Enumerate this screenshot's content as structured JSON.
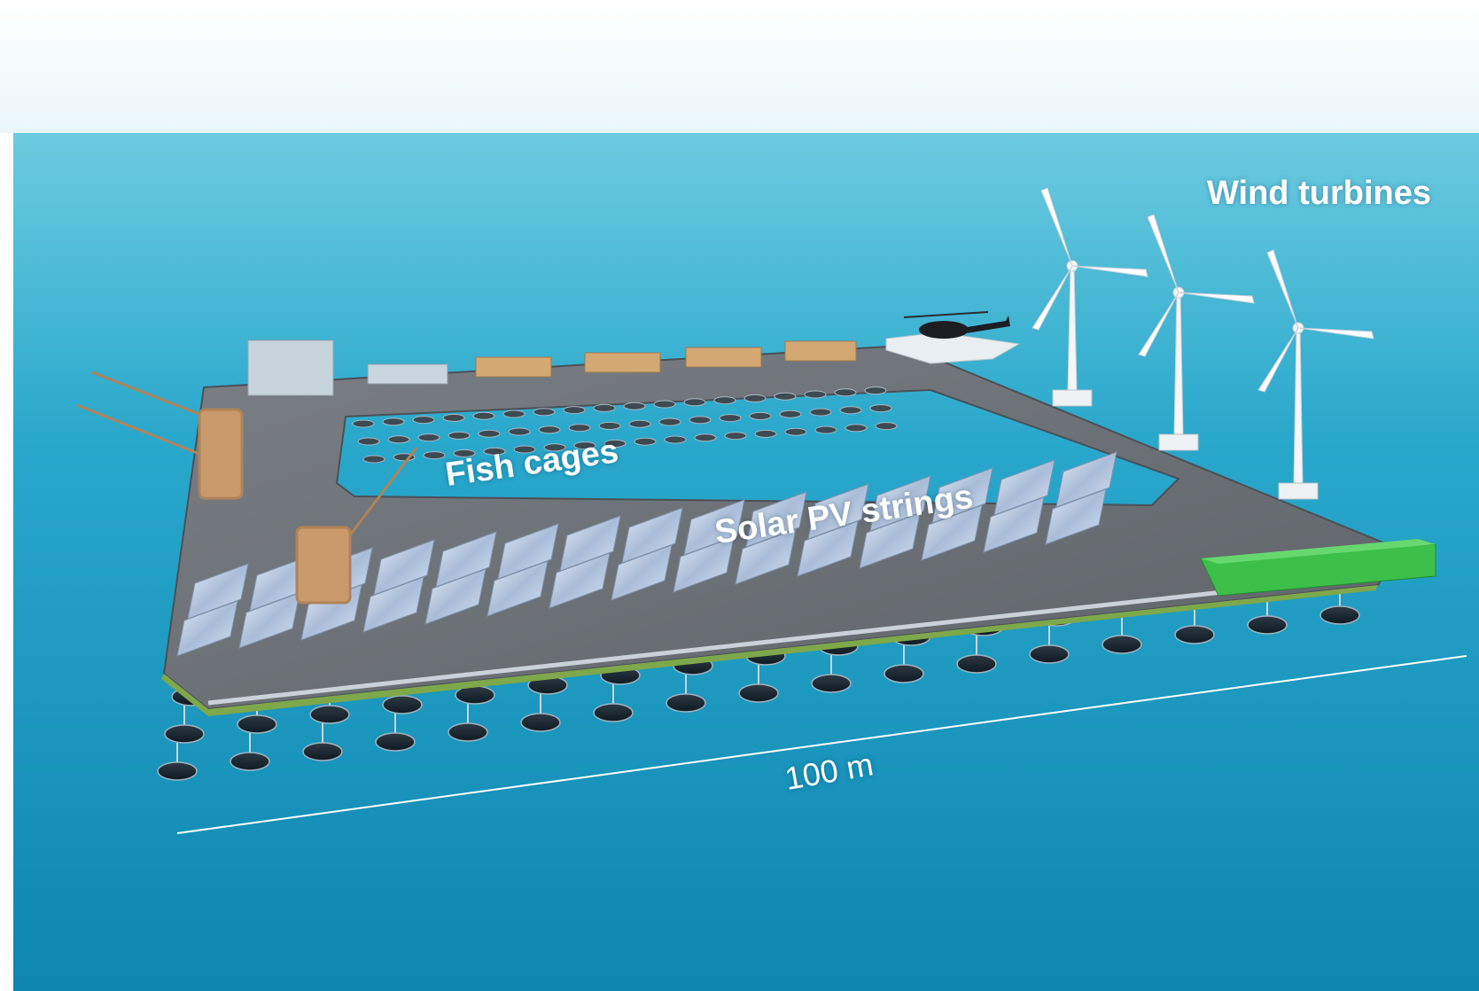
{
  "labels": {
    "wind": "Wind turbines",
    "fish": "Fish cages",
    "solar": "Solar PV strings",
    "scale": "100 m"
  },
  "colors": {
    "sky_top": "#ffffff",
    "sea_horizon": "#5cc3d8",
    "sea_deep": "#0c7fa6",
    "deck": "#6b7075",
    "container_green": "#3cc04a",
    "crane": "#c89a6c",
    "panel": "#b8c8e0"
  },
  "scene_objects": [
    "sea",
    "sky",
    "platform-deck",
    "fish-cages",
    "solar-pv-panels",
    "wind-turbines",
    "cranes",
    "helicopter",
    "helipad",
    "containers",
    "buoyancy-floaters",
    "scale-line"
  ]
}
